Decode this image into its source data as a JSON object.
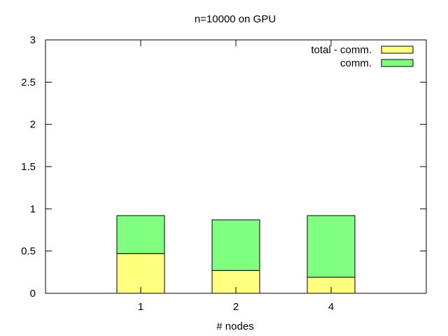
{
  "chart_data": {
    "type": "bar",
    "stacked": true,
    "title": "n=10000 on GPU",
    "xlabel": "# nodes",
    "ylabel": "",
    "categories": [
      "1",
      "2",
      "4"
    ],
    "ylim": [
      0,
      3
    ],
    "yticks": [
      "0",
      "0.5",
      "1",
      "1.5",
      "2",
      "2.5",
      "3"
    ],
    "ytick_values": [
      0,
      0.5,
      1,
      1.5,
      2,
      2.5,
      3
    ],
    "series": [
      {
        "name": "total - comm.",
        "values": [
          0.47,
          0.27,
          0.19
        ],
        "color": "#ffff80"
      },
      {
        "name": "comm.",
        "values": [
          0.45,
          0.6,
          0.73
        ],
        "color": "#80ff80"
      }
    ],
    "legend_position": "top-right",
    "grid": false
  }
}
